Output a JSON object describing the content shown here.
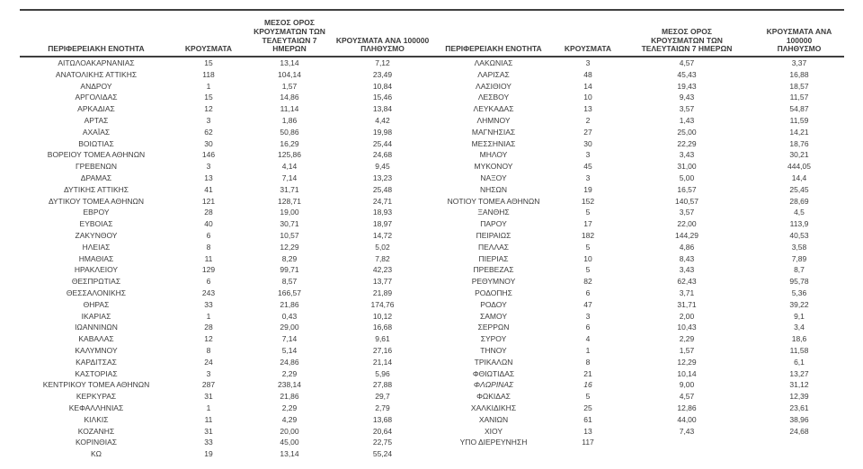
{
  "text_color": "#3c3c3c",
  "rule_color": "#3f3f3f",
  "columns": {
    "region": "ΠΕΡΙΦΕΡΕΙΑΚΗ ΕΝΟΤΗΤΑ",
    "cases": "ΚΡΟΥΣΜΑΤΑ",
    "avg7": "ΜΕΣΟΣ ΟΡΟΣ\nΚΡΟΥΣΜΑΤΩΝ ΤΩΝ\nΤΕΛΕΥΤΑΙΩΝ 7 ΗΜΕΡΩΝ",
    "per100k": "ΚΡΟΥΣΜΑΤΑ ΑΝΑ 100000\nΠΛΗΘΥΣΜΟ"
  },
  "left_rows": [
    {
      "region": "ΑΙΤΩΛΟΑΚΑΡΝΑΝΙΑΣ",
      "cases": "15",
      "avg7": "13,14",
      "per100k": "7,12"
    },
    {
      "region": "ΑΝΑΤΟΛΙΚΗΣ ΑΤΤΙΚΗΣ",
      "cases": "118",
      "avg7": "104,14",
      "per100k": "23,49"
    },
    {
      "region": "ΑΝΔΡΟΥ",
      "cases": "1",
      "avg7": "1,57",
      "per100k": "10,84"
    },
    {
      "region": "ΑΡΓΟΛΙΔΑΣ",
      "cases": "15",
      "avg7": "14,86",
      "per100k": "15,46"
    },
    {
      "region": "ΑΡΚΑΔΙΑΣ",
      "cases": "12",
      "avg7": "11,14",
      "per100k": "13,84"
    },
    {
      "region": "ΑΡΤΑΣ",
      "cases": "3",
      "avg7": "1,86",
      "per100k": "4,42"
    },
    {
      "region": "ΑΧΑΪΑΣ",
      "cases": "62",
      "avg7": "50,86",
      "per100k": "19,98"
    },
    {
      "region": "ΒΟΙΩΤΙΑΣ",
      "cases": "30",
      "avg7": "16,29",
      "per100k": "25,44"
    },
    {
      "region": "ΒΟΡΕΙΟΥ ΤΟΜΕΑ ΑΘΗΝΩΝ",
      "cases": "146",
      "avg7": "125,86",
      "per100k": "24,68"
    },
    {
      "region": "ΓΡΕΒΕΝΩΝ",
      "cases": "3",
      "avg7": "4,14",
      "per100k": "9,45"
    },
    {
      "region": "ΔΡΑΜΑΣ",
      "cases": "13",
      "avg7": "7,14",
      "per100k": "13,23"
    },
    {
      "region": "ΔΥΤΙΚΗΣ ΑΤΤΙΚΗΣ",
      "cases": "41",
      "avg7": "31,71",
      "per100k": "25,48"
    },
    {
      "region": "ΔΥΤΙΚΟΥ ΤΟΜΕΑ ΑΘΗΝΩΝ",
      "cases": "121",
      "avg7": "128,71",
      "per100k": "24,71"
    },
    {
      "region": "ΕΒΡΟΥ",
      "cases": "28",
      "avg7": "19,00",
      "per100k": "18,93"
    },
    {
      "region": "ΕΥΒΟΙΑΣ",
      "cases": "40",
      "avg7": "30,71",
      "per100k": "18,97"
    },
    {
      "region": "ΖΑΚΥΝΘΟΥ",
      "cases": "6",
      "avg7": "10,57",
      "per100k": "14,72"
    },
    {
      "region": "ΗΛΕΙΑΣ",
      "cases": "8",
      "avg7": "12,29",
      "per100k": "5,02"
    },
    {
      "region": "ΗΜΑΘΙΑΣ",
      "cases": "11",
      "avg7": "8,29",
      "per100k": "7,82"
    },
    {
      "region": "ΗΡΑΚΛΕΙΟΥ",
      "cases": "129",
      "avg7": "99,71",
      "per100k": "42,23"
    },
    {
      "region": "ΘΕΣΠΡΩΤΙΑΣ",
      "cases": "6",
      "avg7": "8,57",
      "per100k": "13,77"
    },
    {
      "region": "ΘΕΣΣΑΛΟΝΙΚΗΣ",
      "cases": "243",
      "avg7": "166,57",
      "per100k": "21,89"
    },
    {
      "region": "ΘΗΡΑΣ",
      "cases": "33",
      "avg7": "21,86",
      "per100k": "174,76"
    },
    {
      "region": "ΙΚΑΡΙΑΣ",
      "cases": "1",
      "avg7": "0,43",
      "per100k": "10,12"
    },
    {
      "region": "ΙΩΑΝΝΙΝΩΝ",
      "cases": "28",
      "avg7": "29,00",
      "per100k": "16,68"
    },
    {
      "region": "ΚΑΒΑΛΑΣ",
      "cases": "12",
      "avg7": "7,14",
      "per100k": "9,61"
    },
    {
      "region": "ΚΑΛΥΜΝΟΥ",
      "cases": "8",
      "avg7": "5,14",
      "per100k": "27,16"
    },
    {
      "region": "ΚΑΡΔΙΤΣΑΣ",
      "cases": "24",
      "avg7": "24,86",
      "per100k": "21,14"
    },
    {
      "region": "ΚΑΣΤΟΡΙΑΣ",
      "cases": "3",
      "avg7": "2,29",
      "per100k": "5,96"
    },
    {
      "region": "ΚΕΝΤΡΙΚΟΥ ΤΟΜΕΑ ΑΘΗΝΩΝ",
      "cases": "287",
      "avg7": "238,14",
      "per100k": "27,88"
    },
    {
      "region": "ΚΕΡΚΥΡΑΣ",
      "cases": "31",
      "avg7": "21,86",
      "per100k": "29,7"
    },
    {
      "region": "ΚΕΦΑΛΛΗΝΙΑΣ",
      "cases": "1",
      "avg7": "2,29",
      "per100k": "2,79"
    },
    {
      "region": "ΚΙΛΚΙΣ",
      "cases": "11",
      "avg7": "4,29",
      "per100k": "13,68"
    },
    {
      "region": "ΚΟΖΑΝΗΣ",
      "cases": "31",
      "avg7": "20,00",
      "per100k": "20,64"
    },
    {
      "region": "ΚΟΡΙΝΘΙΑΣ",
      "cases": "33",
      "avg7": "45,00",
      "per100k": "22,75"
    },
    {
      "region": "ΚΩ",
      "cases": "19",
      "avg7": "13,14",
      "per100k": "55,24"
    }
  ],
  "right_rows": [
    {
      "region": "ΛΑΚΩΝΙΑΣ",
      "cases": "3",
      "avg7": "4,57",
      "per100k": "3,37"
    },
    {
      "region": "ΛΑΡΙΣΑΣ",
      "cases": "48",
      "avg7": "45,43",
      "per100k": "16,88"
    },
    {
      "region": "ΛΑΣΙΘΙΟΥ",
      "cases": "14",
      "avg7": "19,43",
      "per100k": "18,57"
    },
    {
      "region": "ΛΕΣΒΟΥ",
      "cases": "10",
      "avg7": "9,43",
      "per100k": "11,57"
    },
    {
      "region": "ΛΕΥΚΑΔΑΣ",
      "cases": "13",
      "avg7": "3,57",
      "per100k": "54,87"
    },
    {
      "region": "ΛΗΜΝΟΥ",
      "cases": "2",
      "avg7": "1,43",
      "per100k": "11,59"
    },
    {
      "region": "ΜΑΓΝΗΣΙΑΣ",
      "cases": "27",
      "avg7": "25,00",
      "per100k": "14,21"
    },
    {
      "region": "ΜΕΣΣΗΝΙΑΣ",
      "cases": "30",
      "avg7": "22,29",
      "per100k": "18,76"
    },
    {
      "region": "ΜΗΛΟΥ",
      "cases": "3",
      "avg7": "3,43",
      "per100k": "30,21"
    },
    {
      "region": "ΜΥΚΟΝΟΥ",
      "cases": "45",
      "avg7": "31,00",
      "per100k": "444,05"
    },
    {
      "region": "ΝΑΞΟΥ",
      "cases": "3",
      "avg7": "5,00",
      "per100k": "14,4"
    },
    {
      "region": "ΝΗΣΩΝ",
      "cases": "19",
      "avg7": "16,57",
      "per100k": "25,45"
    },
    {
      "region": "ΝΟΤΙΟΥ ΤΟΜΕΑ ΑΘΗΝΩΝ",
      "cases": "152",
      "avg7": "140,57",
      "per100k": "28,69"
    },
    {
      "region": "ΞΑΝΘΗΣ",
      "cases": "5",
      "avg7": "3,57",
      "per100k": "4,5"
    },
    {
      "region": "ΠΑΡΟΥ",
      "cases": "17",
      "avg7": "22,00",
      "per100k": "113,9"
    },
    {
      "region": "ΠΕΙΡΑΙΩΣ",
      "cases": "182",
      "avg7": "144,29",
      "per100k": "40,53"
    },
    {
      "region": "ΠΕΛΛΑΣ",
      "cases": "5",
      "avg7": "4,86",
      "per100k": "3,58"
    },
    {
      "region": "ΠΙΕΡΙΑΣ",
      "cases": "10",
      "avg7": "8,43",
      "per100k": "7,89"
    },
    {
      "region": "ΠΡΕΒΕΖΑΣ",
      "cases": "5",
      "avg7": "3,43",
      "per100k": "8,7"
    },
    {
      "region": "ΡΕΘΥΜΝΟΥ",
      "cases": "82",
      "avg7": "62,43",
      "per100k": "95,78"
    },
    {
      "region": "ΡΟΔΟΠΗΣ",
      "cases": "6",
      "avg7": "3,71",
      "per100k": "5,36"
    },
    {
      "region": "ΡΟΔΟΥ",
      "cases": "47",
      "avg7": "31,71",
      "per100k": "39,22"
    },
    {
      "region": "ΣΑΜΟΥ",
      "cases": "3",
      "avg7": "2,00",
      "per100k": "9,1"
    },
    {
      "region": "ΣΕΡΡΩΝ",
      "cases": "6",
      "avg7": "10,43",
      "per100k": "3,4"
    },
    {
      "region": "ΣΥΡΟΥ",
      "cases": "4",
      "avg7": "2,29",
      "per100k": "18,6"
    },
    {
      "region": "ΤΗΝΟΥ",
      "cases": "1",
      "avg7": "1,57",
      "per100k": "11,58"
    },
    {
      "region": "ΤΡΙΚΑΛΩΝ",
      "cases": "8",
      "avg7": "12,29",
      "per100k": "6,1"
    },
    {
      "region": "ΦΘΙΩΤΙΔΑΣ",
      "cases": "21",
      "avg7": "10,14",
      "per100k": "13,27"
    },
    {
      "region": "ΦΛΩΡΙΝΑΣ",
      "cases": "16",
      "avg7": "9,00",
      "per100k": "31,12",
      "italic": true
    },
    {
      "region": "ΦΩΚΙΔΑΣ",
      "cases": "5",
      "avg7": "4,57",
      "per100k": "12,39"
    },
    {
      "region": "ΧΑΛΚΙΔΙΚΗΣ",
      "cases": "25",
      "avg7": "12,86",
      "per100k": "23,61"
    },
    {
      "region": "ΧΑΝΙΩΝ",
      "cases": "61",
      "avg7": "44,00",
      "per100k": "38,96"
    },
    {
      "region": "ΧΙΟΥ",
      "cases": "13",
      "avg7": "7,43",
      "per100k": "24,68"
    },
    {
      "region": "ΥΠΟ ΔΙΕΡΕΥΝΗΣΗ",
      "cases": "117",
      "avg7": "",
      "per100k": ""
    }
  ]
}
